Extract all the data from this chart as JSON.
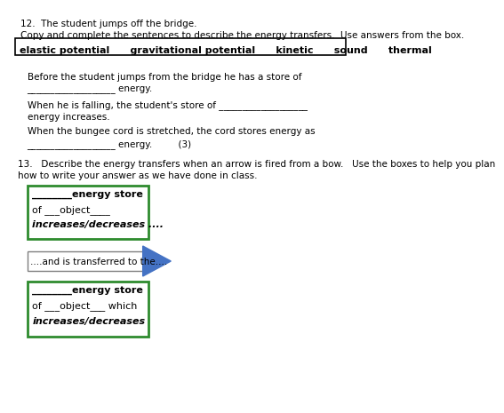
{
  "bg_color": "#ffffff",
  "text_color": "#000000",
  "green_border": "#2e8b2e",
  "blue_arrow_color": "#4472c4",
  "arrow_border_color": "#7f7f7f",
  "title_line": "12.  The student jumps off the bridge.",
  "subtitle_line": "Copy and complete the sentences to describe the energy transfers.  Use answers from the box.",
  "box_words": "elastic potential      gravitational potential      kinetic      sound      thermal",
  "sentence1a": "Before the student jumps from the bridge he has a store of",
  "sentence1b": "___________________ energy.",
  "sentence2a": "When he is falling, the student's store of ___________________",
  "sentence2b": "energy increases.",
  "sentence3a": "When the bungee cord is stretched, the cord stores energy as",
  "sentence3b": "___________________ energy.         (3)",
  "q13_intro1": "13.   Describe the energy transfers when an arrow is fired from a bow.   Use the boxes to help you plan",
  "q13_intro2": "how to write your answer as we have done in class.",
  "box1_line1": "________energy store",
  "box1_line2": "of ___object____",
  "box1_line3": "increases/decreases ....",
  "arrow_text": "....and is transferred to the....",
  "box2_line1": "________energy store",
  "box2_line2": "of ___object___ which",
  "box2_line3": "increases/decreases"
}
